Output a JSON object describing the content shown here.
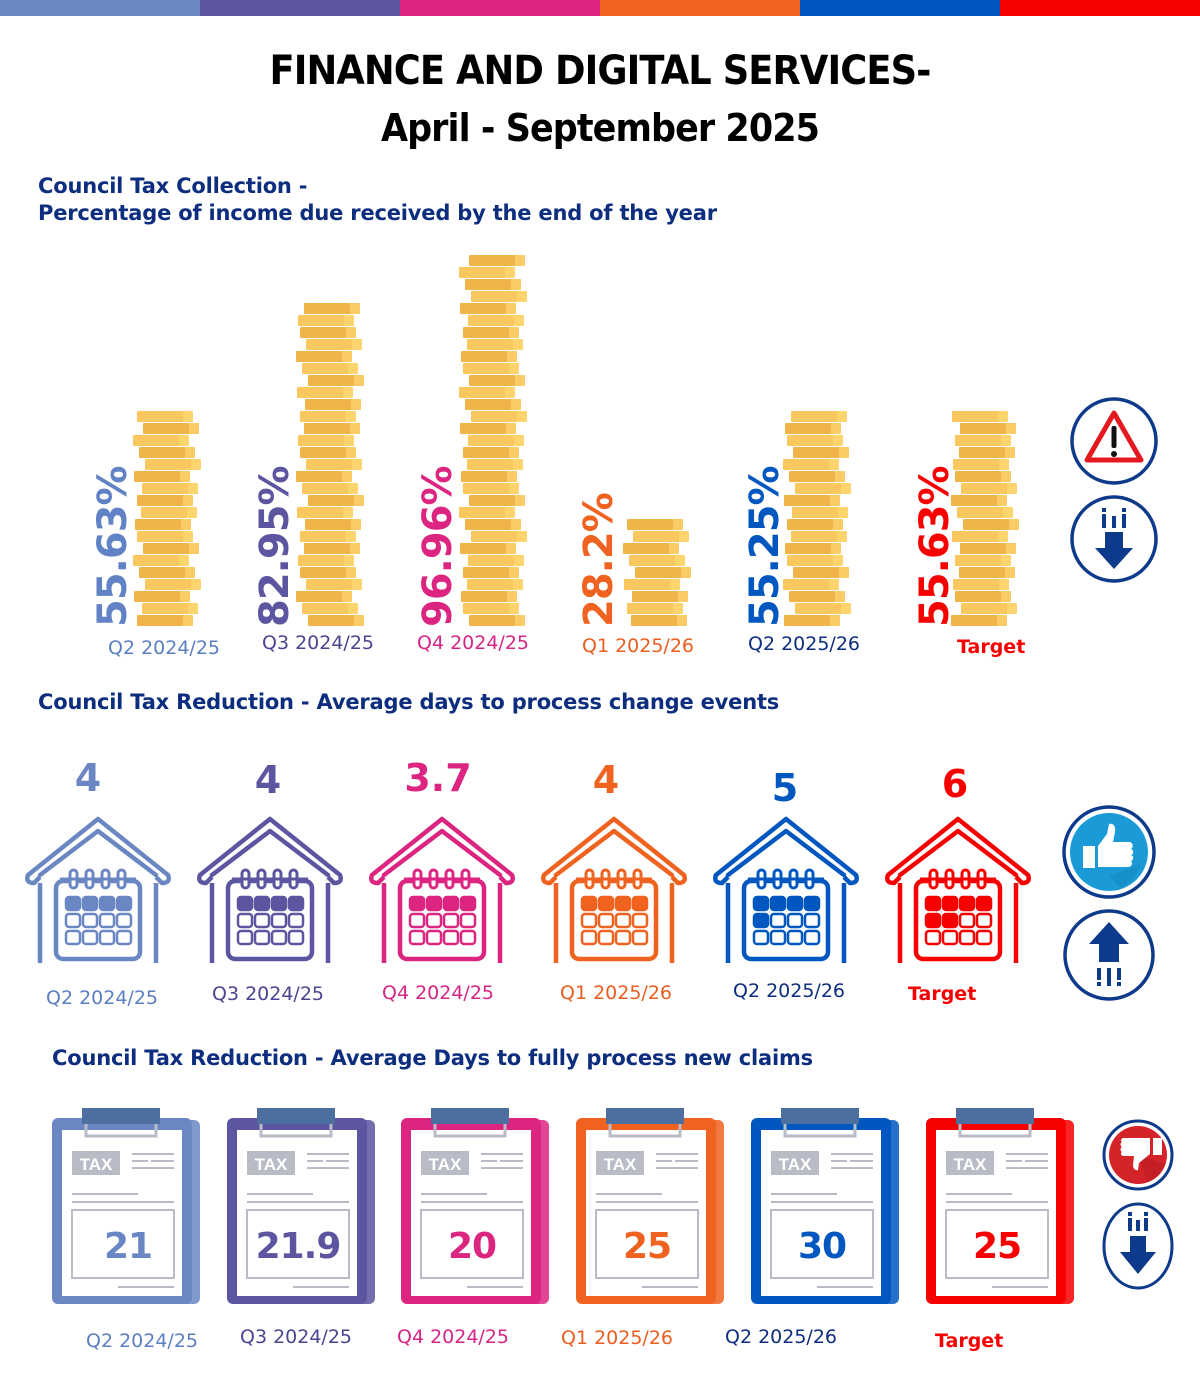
{
  "colors": {
    "periods": [
      "#6b87c3",
      "#5c55a0",
      "#dc2580",
      "#f0621f",
      "#0057bf",
      "#f70000"
    ],
    "label_colors": [
      "#5b7fc2",
      "#4a4590",
      "#d62585",
      "#ea5d1f",
      "#0d2d7e",
      "#f70000"
    ],
    "heading": "#0d2d7e",
    "coin_dark": "#f0b44a",
    "coin_light": "#fbc860",
    "icon_ring": "#0d3a8a"
  },
  "header": {
    "title": "FINANCE AND DIGITAL SERVICES-",
    "subtitle": "April - September 2025"
  },
  "section1": {
    "title_line1": "Council Tax Collection -",
    "title_line2": "Percentage of income due received by the end of the year",
    "items": [
      {
        "period": "Q2 2024/25",
        "value": "55.63%"
      },
      {
        "period": "Q3 2024/25",
        "value": "82.95%"
      },
      {
        "period": "Q4 2024/25",
        "value": "96.96%"
      },
      {
        "period": "Q1 2025/26",
        "value": "28.2%"
      },
      {
        "period": "Q2 2025/26",
        "value": "55.25%"
      },
      {
        "period": "Target",
        "value": "55.63%"
      }
    ],
    "status_icons": [
      "warning-icon",
      "trend-down-icon"
    ]
  },
  "section2": {
    "title": "Council Tax Reduction - Average days to process change events",
    "items": [
      {
        "period": "Q2 2024/25",
        "value": "4"
      },
      {
        "period": "Q3 2024/25",
        "value": "4"
      },
      {
        "period": "Q4 2024/25",
        "value": "3.7"
      },
      {
        "period": "Q1 2025/26",
        "value": "4"
      },
      {
        "period": "Q2 2025/26",
        "value": "5"
      },
      {
        "period": "Target",
        "value": "6"
      }
    ],
    "status_icons": [
      "thumbs-up-icon",
      "trend-up-icon"
    ]
  },
  "section3": {
    "title": "Council Tax Reduction - Average Days to fully process new claims",
    "tax_label": "TAX",
    "items": [
      {
        "period": "Q2 2024/25",
        "value": "21"
      },
      {
        "period": "Q3 2024/25",
        "value": "21.9"
      },
      {
        "period": "Q4 2024/25",
        "value": "20"
      },
      {
        "period": "Q1 2025/26",
        "value": "25"
      },
      {
        "period": "Q2 2025/26",
        "value": "30"
      },
      {
        "period": "Target",
        "value": "25"
      }
    ],
    "status_icons": [
      "thumbs-down-icon",
      "trend-down-icon"
    ]
  },
  "chart_data": {
    "type": "bar",
    "title": "Council Tax Collection - Percentage of income due received by the end of the year",
    "categories": [
      "Q2 2024/25",
      "Q3 2024/25",
      "Q4 2024/25",
      "Q1 2025/26",
      "Q2 2025/26",
      "Target"
    ],
    "values": [
      55.63,
      82.95,
      96.96,
      28.2,
      55.25,
      55.63
    ],
    "xlabel": "",
    "ylabel": "%",
    "ylim": [
      0,
      100
    ]
  }
}
